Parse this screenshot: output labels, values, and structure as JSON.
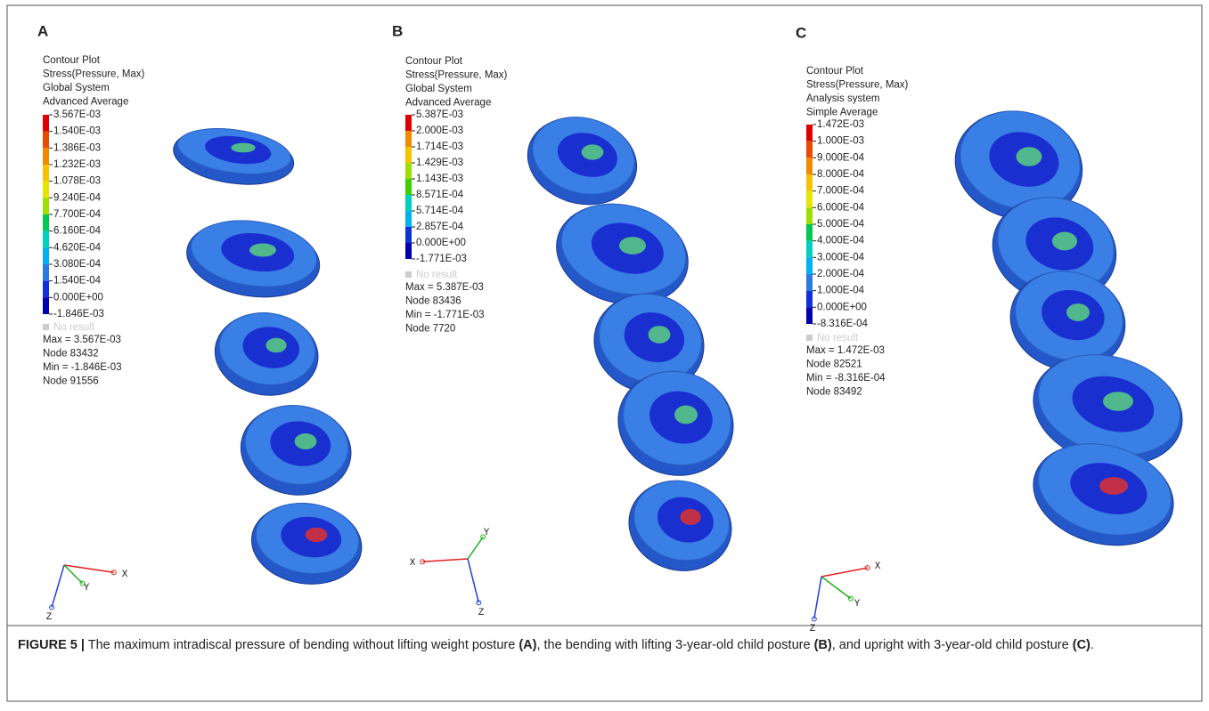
{
  "panels": [
    {
      "label": "A",
      "legend": {
        "header": [
          "Contour Plot",
          "Stress(Pressure, Max)",
          "Global System",
          "Advanced Average"
        ],
        "levels": [
          "3.567E-03",
          "1.540E-03",
          "1.386E-03",
          "1.232E-03",
          "1.078E-03",
          "9.240E-04",
          "7.700E-04",
          "6.160E-04",
          "4.620E-04",
          "3.080E-04",
          "1.540E-04",
          "0.000E+00",
          "-1.846E-03"
        ],
        "no_result": "No result",
        "stats": [
          "Max = 3.567E-03",
          "Node 83432",
          "Min = -1.846E-03",
          "Node 91556"
        ]
      },
      "triad": {
        "x": "X",
        "y": "Y",
        "z": "Z"
      }
    },
    {
      "label": "B",
      "legend": {
        "header": [
          "Contour Plot",
          "Stress(Pressure, Max)",
          "Global System",
          "Advanced Average"
        ],
        "levels": [
          "5.387E-03",
          "2.000E-03",
          "1.714E-03",
          "1.429E-03",
          "1.143E-03",
          "8.571E-04",
          "5.714E-04",
          "2.857E-04",
          "0.000E+00",
          "-1.771E-03"
        ],
        "no_result": "No result",
        "stats": [
          "Max = 5.387E-03",
          "Node 83436",
          "Min = -1.771E-03",
          "Node 7720"
        ]
      },
      "triad": {
        "x": "X",
        "y": "Y",
        "z": "Z"
      }
    },
    {
      "label": "C",
      "legend": {
        "header": [
          "Contour Plot",
          "Stress(Pressure, Max)",
          "Analysis system",
          "Simple Average"
        ],
        "levels": [
          "1.472E-03",
          "1.000E-03",
          "9.000E-04",
          "8.000E-04",
          "7.000E-04",
          "6.000E-04",
          "5.000E-04",
          "4.000E-04",
          "3.000E-04",
          "2.000E-04",
          "1.000E-04",
          "0.000E+00",
          "-8.316E-04"
        ],
        "no_result": "No result",
        "stats": [
          "Max = 1.472E-03",
          "Node 82521",
          "Min = -8.316E-04",
          "Node 83492"
        ]
      },
      "triad": {
        "x": "X",
        "y": "Y",
        "z": "Z"
      }
    }
  ],
  "caption": {
    "label": "FIGURE 5 |",
    "text_1": " The maximum intradiscal pressure of bending without lifting weight posture ",
    "ref_a": "(A)",
    "text_2": ", the bending with lifting 3-year-old child posture ",
    "ref_b": "(B)",
    "text_3": ", and upright with 3-year-old child posture ",
    "ref_c": "(C)",
    "text_4": "."
  }
}
